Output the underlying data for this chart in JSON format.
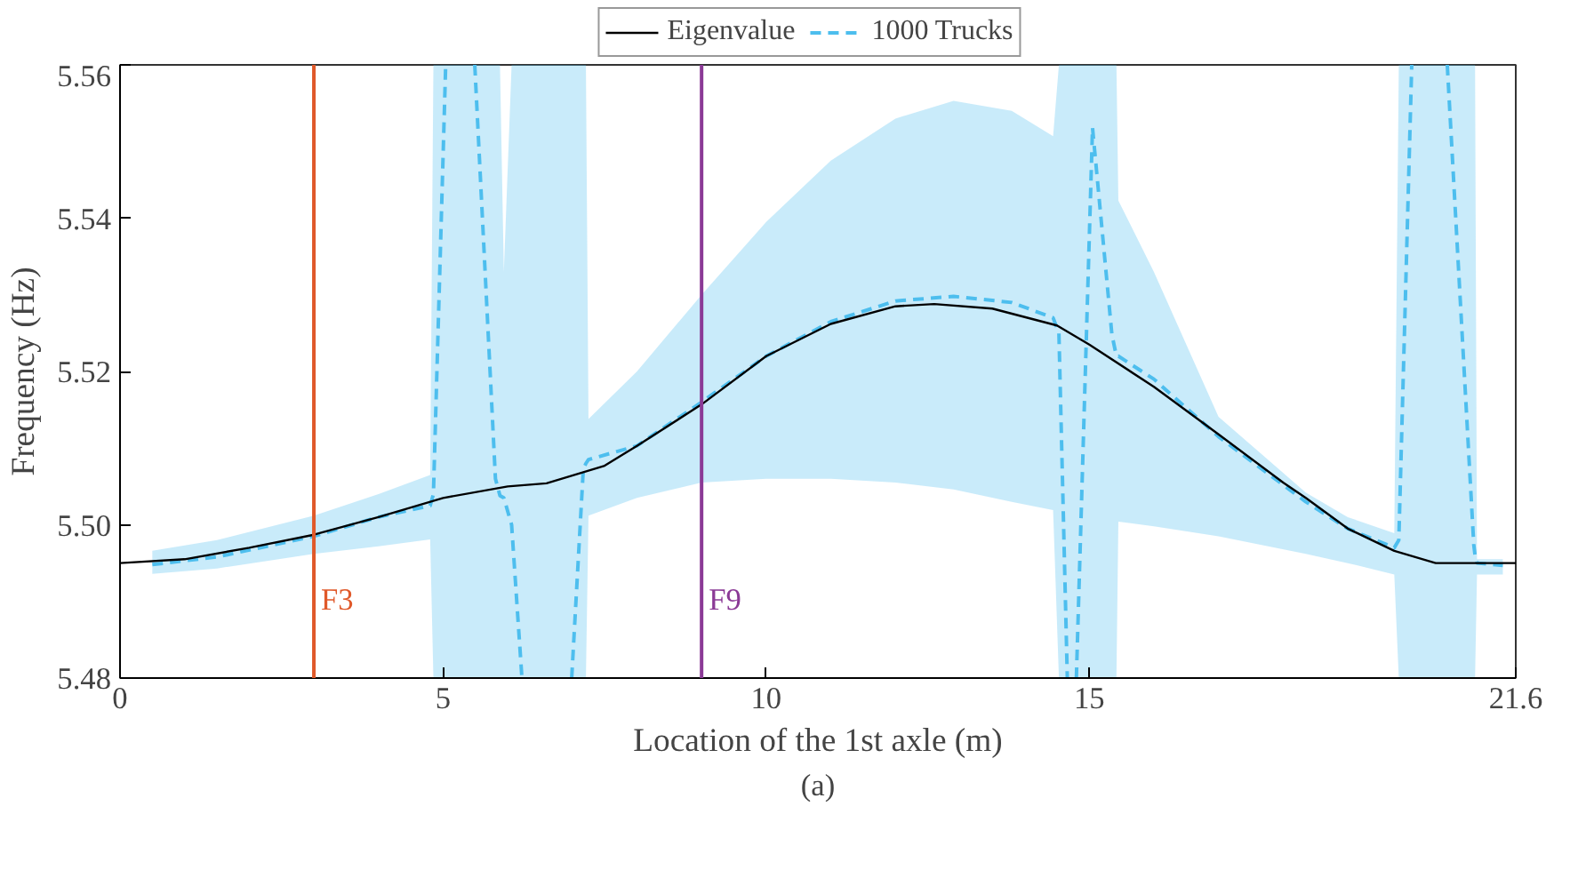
{
  "chart_data": {
    "type": "line",
    "xlabel": "Location of the 1st axle (m)",
    "ylabel": "Frequency (Hz)",
    "xlim": [
      0,
      21.6
    ],
    "xticks": [
      0,
      5,
      10,
      15,
      21.6
    ],
    "ylim": [
      5.48,
      5.56
    ],
    "yticks": [
      5.48,
      {
        "value": 5.5,
        "label": "5.50"
      },
      5.52,
      5.54,
      5.56
    ],
    "grid": false,
    "legend": "top",
    "series": [
      {
        "name": "Eigenvalue",
        "color": "#000000",
        "line_style": "solid",
        "x": [
          0,
          1,
          2,
          3,
          4,
          5,
          6,
          6.6,
          7.5,
          8,
          9,
          10,
          11,
          12,
          12.6,
          13.5,
          14.5,
          15,
          16,
          17,
          18,
          18.35,
          19,
          19.72,
          20.36,
          21.6
        ],
        "values": [
          5.495,
          5.4955,
          5.497,
          5.4987,
          5.501,
          5.5035,
          5.505,
          5.5054,
          5.5077,
          5.5103,
          5.5157,
          5.522,
          5.5262,
          5.5285,
          5.5288,
          5.5282,
          5.526,
          5.5235,
          5.518,
          5.5118,
          5.5055,
          5.5035,
          5.4995,
          5.4966,
          5.495,
          5.495
        ]
      },
      {
        "name": "1000 Trucks",
        "color": "#4dbeee",
        "line_style": "dashed",
        "x": [
          0.5,
          1.5,
          3,
          4,
          4.8,
          4.85,
          5.04,
          5.2,
          5.49,
          5.81,
          5.88,
          5.94,
          6.06,
          6.22,
          6.6,
          6.99,
          7.17,
          7.21,
          7.25,
          8,
          9,
          10,
          11,
          12,
          12.9,
          13.8,
          14.44,
          14.53,
          14.66,
          14.73,
          14.8,
          15.05,
          15.35,
          15.42,
          15.45,
          16,
          17,
          18.35,
          19,
          19.72,
          19.79,
          19.99,
          20.3,
          20.54,
          20.95,
          20.97,
          21,
          21.4
        ],
        "values": [
          5.4948,
          5.4958,
          5.4985,
          5.501,
          5.5025,
          5.504,
          5.56,
          null,
          5.56,
          5.506,
          5.5038,
          5.5035,
          5.5,
          5.48,
          null,
          5.48,
          5.5073,
          5.508,
          5.5085,
          5.5103,
          5.516,
          5.522,
          5.5265,
          5.5292,
          5.5298,
          5.529,
          5.527,
          5.525,
          5.48,
          null,
          5.48,
          5.5518,
          5.5248,
          5.522,
          5.522,
          5.519,
          5.5115,
          5.503,
          5.4995,
          5.497,
          5.498,
          5.56,
          null,
          5.56,
          5.4974,
          5.496,
          5.495,
          5.4947
        ],
        "lower": [
          5.4936,
          5.4943,
          5.4962,
          5.4972,
          5.4981,
          5.48,
          5.48,
          5.48,
          5.48,
          5.48,
          5.48,
          5.48,
          5.48,
          5.48,
          5.48,
          5.48,
          5.48,
          5.48,
          5.5012,
          5.5035,
          5.5055,
          5.506,
          5.506,
          5.5055,
          5.5046,
          5.503,
          5.5019,
          5.48,
          5.48,
          5.48,
          5.48,
          5.48,
          5.48,
          5.48,
          5.5004,
          5.4998,
          5.4985,
          5.4962,
          5.495,
          5.4935,
          5.48,
          5.48,
          5.48,
          5.48,
          5.48,
          5.48,
          5.4935,
          5.4935
        ],
        "upper": [
          5.4966,
          5.498,
          5.5012,
          5.504,
          5.5065,
          5.56,
          5.56,
          5.56,
          5.56,
          5.56,
          5.56,
          5.533,
          5.56,
          5.56,
          5.56,
          5.56,
          5.56,
          5.56,
          5.5138,
          5.52,
          5.53,
          5.5395,
          5.5475,
          5.553,
          5.5553,
          5.554,
          5.5507,
          5.56,
          5.56,
          5.56,
          5.56,
          5.56,
          5.56,
          5.56,
          5.5423,
          5.533,
          5.5141,
          5.5042,
          5.501,
          5.4989,
          5.56,
          5.56,
          5.56,
          5.56,
          5.56,
          5.56,
          5.4955,
          5.4955
        ]
      }
    ],
    "ref_lines": [
      {
        "axis": "x",
        "value": 3,
        "label": "F3",
        "color": "#e0592a"
      },
      {
        "axis": "x",
        "value": 9,
        "label": "F9",
        "color": "#8b3a96"
      }
    ],
    "annotations": [
      "(a)"
    ]
  }
}
